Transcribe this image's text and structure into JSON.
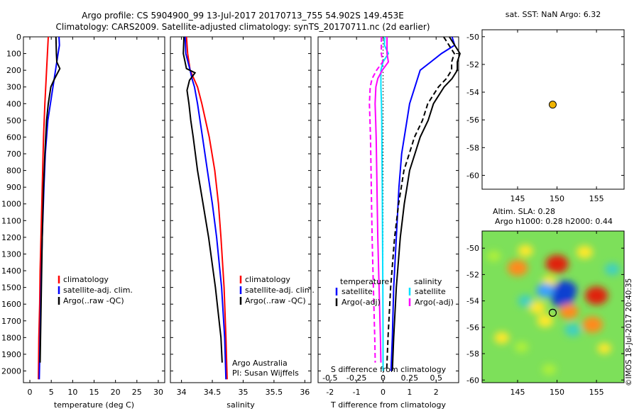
{
  "header": {
    "title_line1": "Argo profile: CS 5904900_99 13-Jul-2017 20170713_755 54.902S 149.453E",
    "title_line2": "Climatology: CARS2009. Satellite-adjusted climatology: synTS_20170711.nc (2d earlier)"
  },
  "depth_axis": {
    "ticks": [
      0,
      100,
      200,
      300,
      400,
      500,
      600,
      700,
      800,
      900,
      1000,
      1100,
      1200,
      1300,
      1400,
      1500,
      1600,
      1700,
      1800,
      1900,
      2000
    ],
    "range": [
      0,
      2070
    ]
  },
  "colors": {
    "climatology": "#ff0000",
    "satellite": "#0000ff",
    "argo": "#000000",
    "salinity": "#00e0ff",
    "argo_adj_sal": "#ff00ff"
  },
  "chart_data": [
    {
      "type": "line",
      "xlabel": "temperature (deg C)",
      "xticks": [
        0,
        5,
        10,
        15,
        20,
        25,
        30
      ],
      "xlim": [
        -1.5,
        31.5
      ],
      "legend": {
        "placement": "middle-right",
        "items": [
          "climatology",
          "satellite-adj. clim.",
          "Argo(..raw -QC)"
        ]
      },
      "series": [
        {
          "name": "climatology",
          "color": "#ff0000",
          "depth": [
            0,
            100,
            200,
            300,
            400,
            600,
            800,
            1000,
            1200,
            1400,
            1600,
            1800,
            2050
          ],
          "values": [
            4.3,
            4.1,
            3.9,
            3.7,
            3.5,
            3.2,
            3.0,
            2.8,
            2.6,
            2.4,
            2.3,
            2.1,
            2.0
          ]
        },
        {
          "name": "satellite-adj. clim.",
          "color": "#0000ff",
          "depth": [
            0,
            50,
            100,
            200,
            300,
            400,
            500,
            700,
            900,
            1200,
            1500,
            1800,
            2050
          ],
          "values": [
            6.8,
            6.9,
            6.6,
            6.0,
            5.4,
            4.8,
            4.2,
            3.6,
            3.3,
            2.9,
            2.6,
            2.4,
            2.2
          ]
        },
        {
          "name": "Argo(..raw -QC)",
          "color": "#000000",
          "depth": [
            0,
            100,
            150,
            190,
            220,
            260,
            300,
            400,
            500,
            700,
            900,
            1200,
            1500,
            1800,
            1950
          ],
          "values": [
            6.1,
            6.2,
            6.3,
            7.0,
            6.4,
            5.6,
            4.9,
            4.3,
            3.9,
            3.5,
            3.2,
            2.9,
            2.7,
            2.5,
            2.4
          ]
        }
      ]
    },
    {
      "type": "line",
      "xlabel": "salinity",
      "xticks": [
        34,
        34.5,
        35,
        35.5,
        36
      ],
      "xlim": [
        33.82,
        36.1
      ],
      "legend": {
        "placement": "middle-right",
        "items": [
          "climatology",
          "satellite-adj. clim.",
          "Argo(..raw -QC)"
        ]
      },
      "annotations": [
        "Argo Australia",
        "PI: Susan Wijffels"
      ],
      "series": [
        {
          "name": "climatology",
          "color": "#ff0000",
          "depth": [
            0,
            100,
            200,
            300,
            400,
            500,
            600,
            800,
            1000,
            1200,
            1500,
            1800,
            2050
          ],
          "values": [
            34.08,
            34.1,
            34.14,
            34.26,
            34.33,
            34.39,
            34.45,
            34.54,
            34.6,
            34.64,
            34.69,
            34.72,
            34.74
          ]
        },
        {
          "name": "satellite-adj. clim.",
          "color": "#0000ff",
          "depth": [
            0,
            100,
            200,
            250,
            300,
            400,
            500,
            600,
            800,
            1000,
            1200,
            1500,
            1800,
            2050
          ],
          "values": [
            34.06,
            34.07,
            34.14,
            34.17,
            34.21,
            34.26,
            34.3,
            34.34,
            34.42,
            34.5,
            34.57,
            34.65,
            34.7,
            34.72
          ]
        },
        {
          "name": "Argo(..raw -QC)",
          "color": "#000000",
          "depth": [
            0,
            100,
            190,
            215,
            260,
            320,
            400,
            500,
            600,
            800,
            1000,
            1200,
            1500,
            1800,
            1950
          ],
          "values": [
            34.04,
            34.03,
            34.08,
            34.22,
            34.13,
            34.09,
            34.12,
            34.15,
            34.19,
            34.26,
            34.35,
            34.44,
            34.55,
            34.64,
            34.66
          ]
        }
      ]
    },
    {
      "type": "line",
      "xlabel": "T difference from climatology",
      "x2label": "S difference from climatology",
      "xticks": [
        -2,
        -1,
        0,
        1,
        2
      ],
      "x2ticks": [
        -0.5,
        -0.25,
        0,
        0.25,
        0.5
      ],
      "xlim": [
        -2.45,
        2.85
      ],
      "legend": {
        "placement": "lower-middle",
        "groups": [
          "temperature",
          "salinity"
        ],
        "items": [
          "satellite",
          "Argo(-adj)",
          "satellite",
          "Argo(-adj)"
        ]
      },
      "series": [
        {
          "name": "satellite",
          "group": "temperature",
          "color": "#0000ff",
          "depth": [
            0,
            50,
            100,
            150,
            200,
            300,
            400,
            500,
            700,
            900,
            1200,
            1500,
            1800,
            2000
          ],
          "values": [
            2.6,
            2.7,
            2.2,
            1.8,
            1.4,
            1.2,
            1.0,
            0.9,
            0.7,
            0.6,
            0.5,
            0.4,
            0.35,
            0.3
          ]
        },
        {
          "name": "Argo(-adj)",
          "group": "temperature",
          "color": "#000000",
          "depth": [
            0,
            50,
            100,
            150,
            200,
            250,
            300,
            400,
            500,
            600,
            700,
            800,
            900,
            1000,
            1200,
            1500,
            1800,
            2000
          ],
          "values": [
            2.5,
            2.7,
            2.9,
            2.8,
            2.8,
            2.6,
            2.3,
            1.9,
            1.7,
            1.4,
            1.2,
            1.0,
            0.9,
            0.8,
            0.65,
            0.5,
            0.4,
            0.35
          ]
        },
        {
          "name": "satellite",
          "group": "salinity",
          "color": "#00e0ff",
          "depth": [
            0,
            50,
            100,
            150,
            200,
            300,
            400,
            500,
            700,
            900,
            1200,
            1500,
            1800,
            2000
          ],
          "values": [
            0.06,
            0.05,
            0.2,
            0.0,
            -0.08,
            -0.08,
            -0.06,
            -0.05,
            -0.04,
            -0.03,
            -0.02,
            -0.01,
            0.0,
            0.0
          ]
        },
        {
          "name": "Argo(-adj)",
          "group": "salinity",
          "color": "#ff00ff",
          "depth": [
            0,
            100,
            150,
            200,
            250,
            300,
            400,
            500,
            600,
            800,
            1000,
            1200,
            1500,
            1800,
            1950
          ],
          "values": [
            0.15,
            0.15,
            0.2,
            -0.03,
            -0.2,
            -0.27,
            -0.3,
            -0.28,
            -0.26,
            -0.24,
            -0.22,
            -0.2,
            -0.15,
            -0.1,
            -0.08
          ]
        }
      ]
    },
    {
      "type": "scatter",
      "title": "sat. SST: NaN Argo: 6.32",
      "xticks": [
        145,
        150,
        155
      ],
      "yticks": [
        -50,
        -52,
        -54,
        -56,
        -58,
        -60
      ],
      "xlim": [
        140.5,
        158.5
      ],
      "ylim": [
        -61,
        -49.5
      ],
      "points": [
        {
          "x": 149.45,
          "y": -54.9,
          "color": "#f0b400"
        }
      ]
    },
    {
      "type": "heatmap",
      "title_line1": "Altim. SLA: 0.28",
      "title_line2": "Argo h1000: 0.28 h2000: 0.44",
      "xticks": [
        145,
        150,
        155
      ],
      "yticks": [
        -50,
        -52,
        -54,
        -56,
        -58,
        -60
      ],
      "xlim": [
        140.5,
        158.5
      ],
      "ylim": [
        -60.2,
        -48.7
      ],
      "marker": {
        "x": 149.45,
        "y": -54.9
      },
      "cells": [
        {
          "x": 146,
          "y": -50.2,
          "v": 0.3
        },
        {
          "x": 153.5,
          "y": -50.3,
          "v": 0.4
        },
        {
          "x": 150,
          "y": -51.2,
          "v": 0.9
        },
        {
          "x": 145,
          "y": -51.5,
          "v": 0.7
        },
        {
          "x": 149,
          "y": -52.5,
          "v": 0.2
        },
        {
          "x": 151,
          "y": -53.2,
          "v": -1.0
        },
        {
          "x": 150.7,
          "y": -53.8,
          "v": -0.9
        },
        {
          "x": 148.5,
          "y": -53.2,
          "v": -0.5
        },
        {
          "x": 155,
          "y": -53.6,
          "v": 0.9
        },
        {
          "x": 151.5,
          "y": -54.8,
          "v": 0.6
        },
        {
          "x": 154.5,
          "y": -55.8,
          "v": 0.7
        },
        {
          "x": 148.5,
          "y": -55.5,
          "v": 0.4
        },
        {
          "x": 147.5,
          "y": -54.5,
          "v": 0.4
        },
        {
          "x": 146,
          "y": -54,
          "v": -0.3
        },
        {
          "x": 145.5,
          "y": -57.5,
          "v": -0.2
        },
        {
          "x": 152,
          "y": -56.2,
          "v": -0.4
        },
        {
          "x": 142,
          "y": -50.6,
          "v": -0.2
        },
        {
          "x": 157,
          "y": -51.6,
          "v": -0.3
        },
        {
          "x": 156,
          "y": -57.6,
          "v": 0.2
        },
        {
          "x": 143,
          "y": -56.8,
          "v": 0.3
        },
        {
          "x": 149,
          "y": -59.2,
          "v": -0.2
        }
      ]
    }
  ],
  "footer": {
    "timestamp": "©IMOS 18-Jul-2017 20:40:35"
  }
}
